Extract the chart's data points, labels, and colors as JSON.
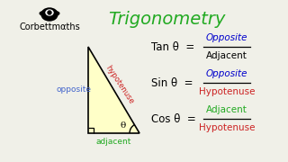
{
  "bg_color": "#f0f0e8",
  "title": "Trigonometry",
  "title_color": "#22aa22",
  "title_fontsize": 14,
  "logo_text": "Corbettmαths",
  "logo_color": "#000000",
  "logo_fontsize": 7,
  "triangle_fill": "#ffffc8",
  "triangle_edge": "#000000",
  "label_opposite": "opposite",
  "label_opposite_color": "#4466cc",
  "label_hypotenuse": "hypotenuse",
  "label_hypotenuse_color": "#cc2222",
  "label_adjacent": "adjacent",
  "label_adjacent_color": "#22aa22",
  "label_theta": "θ",
  "formula_label_color": "#000000",
  "numerator_color_tan": "#0000cc",
  "denominator_color_tan": "#000000",
  "numerator_color_sin": "#0000cc",
  "denominator_color_sin": "#cc2222",
  "numerator_color_cos": "#22aa22",
  "denominator_color_cos": "#cc2222",
  "tan_label": "Tan θ  =",
  "sin_label": "Sin θ  =",
  "cos_label": "Cos θ  =",
  "tan_num": "Opposite",
  "tan_den": "Adjacent",
  "sin_num": "Opposite",
  "sin_den": "Hypotenuse",
  "cos_num": "Adjacent",
  "cos_den": "Hypotenuse"
}
